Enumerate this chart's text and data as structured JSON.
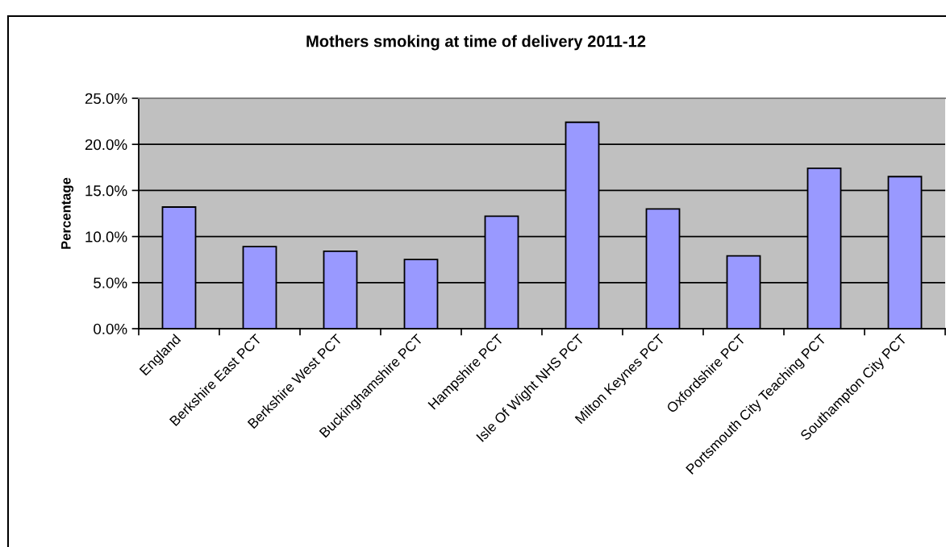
{
  "chart_data": {
    "type": "bar",
    "title": "Mothers smoking at time of delivery 2011-12",
    "ylabel": "Percentage",
    "categories": [
      "England",
      "Berkshire East PCT",
      "Berkshire West PCT",
      "Buckinghamshire PCT",
      "Hampshire PCT",
      "Isle Of Wight NHS PCT",
      "Milton Keynes PCT",
      "Oxfordshire PCT",
      "Portsmouth City Teaching PCT",
      "Southampton City PCT"
    ],
    "values": [
      13.2,
      8.9,
      8.4,
      7.5,
      12.2,
      22.4,
      13.0,
      7.9,
      17.4,
      16.5
    ],
    "color": "#9999ff",
    "ylim": [
      0,
      25
    ],
    "yticks": [
      {
        "value": 0,
        "label": "0.0%"
      },
      {
        "value": 5,
        "label": "5.0%"
      },
      {
        "value": 10,
        "label": "10.0%"
      },
      {
        "value": 15,
        "label": "15.0%"
      },
      {
        "value": 20,
        "label": "20.0%"
      },
      {
        "value": 25,
        "label": "25.0%"
      }
    ],
    "grid": "y"
  }
}
